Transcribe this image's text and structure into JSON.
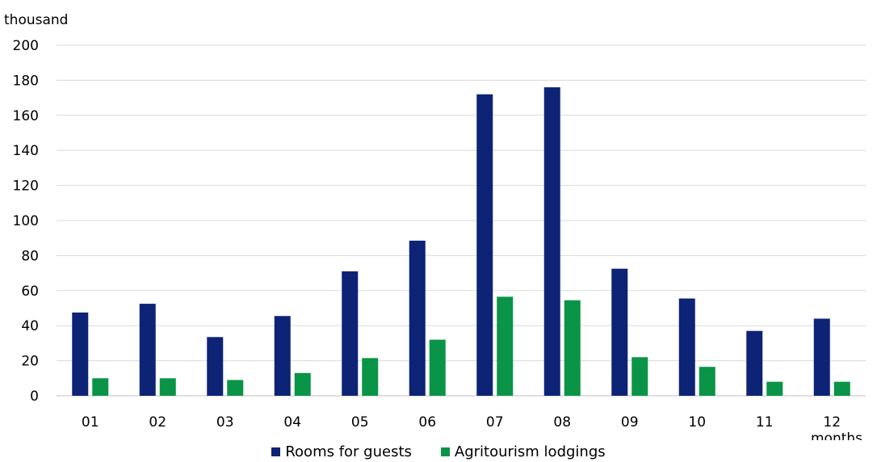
{
  "chart_data": {
    "type": "bar",
    "title": "",
    "ylabel": "thousand",
    "xlabel": "months",
    "ylim": [
      0,
      200
    ],
    "yticks": [
      0,
      20,
      40,
      60,
      80,
      100,
      120,
      140,
      160,
      180,
      200
    ],
    "categories": [
      "01",
      "02",
      "03",
      "04",
      "05",
      "06",
      "07",
      "08",
      "09",
      "10",
      "11",
      "12"
    ],
    "grid": true,
    "legend_position": "bottom",
    "series": [
      {
        "name": "Rooms for guests",
        "color": "#0d2376",
        "values": [
          47.5,
          52.5,
          33.5,
          45.5,
          71,
          88.5,
          172,
          176,
          72.5,
          55.5,
          37,
          44
        ]
      },
      {
        "name": "Agritourism lodgings",
        "color": "#0a9447",
        "values": [
          10,
          10,
          9,
          13,
          21.5,
          32,
          56.5,
          54.5,
          22,
          16.5,
          8,
          8
        ]
      }
    ]
  }
}
